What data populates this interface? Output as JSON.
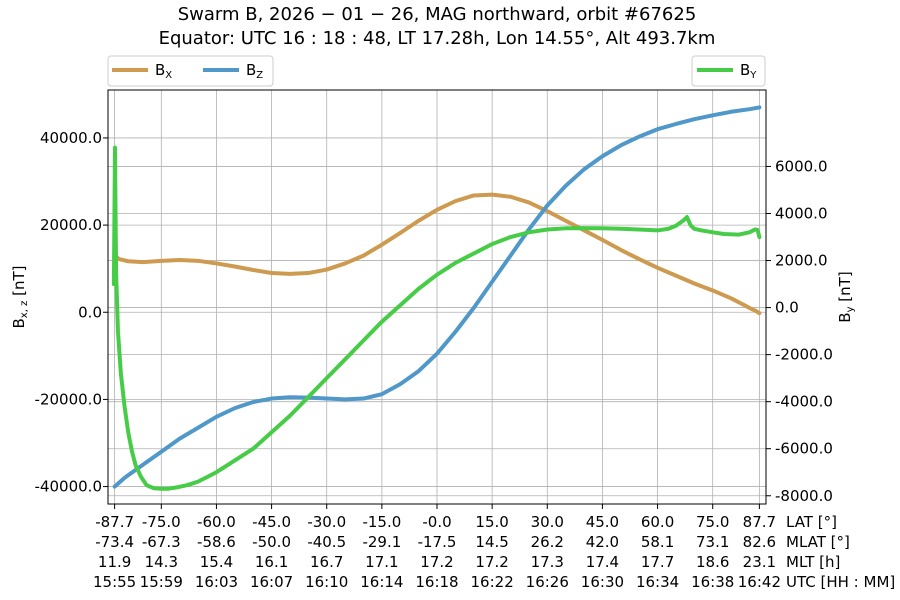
{
  "chart_data": {
    "type": "line",
    "title_line1": "Swarm B,  2026 − 01 − 26,  MAG northward,  orbit #67625",
    "title_line2": "Equator:  UTC 16 : 18 : 48,  LT 17.28h,  Lon 14.55°,  Alt 493.7km",
    "ylabel_left_main": "B",
    "ylabel_left_sub": "x, z",
    "ylabel_left_unit": " [nT]",
    "ylabel_right_main": "B",
    "ylabel_right_sub": "y",
    "ylabel_right_unit": " [nT]",
    "legend_left": [
      {
        "main": "B",
        "sub": "X",
        "color": "#cd9a4f"
      },
      {
        "main": "B",
        "sub": "Z",
        "color": "#4f98c9"
      }
    ],
    "legend_right": [
      {
        "main": "B",
        "sub": "Y",
        "color": "#47cc47"
      }
    ],
    "grid": true,
    "x_ticks_lat": [
      "-87.7",
      "-75.0",
      "-60.0",
      "-45.0",
      "-30.0",
      "-15.0",
      "-0.0",
      "15.0",
      "30.0",
      "45.0",
      "60.0",
      "75.0",
      "87.7"
    ],
    "x_ticks_mlat": [
      "-73.4",
      "-67.3",
      "-58.6",
      "-50.0",
      "-40.5",
      "-29.1",
      "-17.5",
      "14.5",
      "26.2",
      "42.0",
      "58.1",
      "73.1",
      "82.6"
    ],
    "x_ticks_mlt": [
      "11.9",
      "14.3",
      "15.4",
      "16.1",
      "16.7",
      "17.1",
      "17.2",
      "17.2",
      "17.3",
      "17.4",
      "17.7",
      "18.6",
      "23.1"
    ],
    "x_ticks_utc": [
      "15:55",
      "15:59",
      "16:03",
      "16:07",
      "16:10",
      "16:14",
      "16:18",
      "16:22",
      "16:26",
      "16:30",
      "16:34",
      "16:38",
      "16:42"
    ],
    "row_labels": [
      "LAT [°]",
      "MLAT [°]",
      "MLT [h]",
      "UTC [HH : MM]"
    ],
    "x_tick_positions_deg": [
      -87.7,
      -75,
      -60,
      -45,
      -30,
      -15,
      0,
      15,
      30,
      45,
      60,
      75,
      87.7
    ],
    "xlim": [
      -89.5,
      89.5
    ],
    "ylim_left": [
      -44000,
      51000
    ],
    "ylim_right": [
      -8350,
      9250
    ],
    "yticks_left": [
      "40000.0",
      "20000.0",
      "0.0",
      "-20000.0",
      "-40000.0"
    ],
    "yticks_left_values": [
      40000,
      20000,
      0,
      -20000,
      -40000
    ],
    "yticks_right": [
      "6000.0",
      "4000.0",
      "2000.0",
      "0.0",
      "-2000.0",
      "-4000.0",
      "-6000.0",
      "-8000.0"
    ],
    "yticks_right_values": [
      6000,
      4000,
      2000,
      0,
      -2000,
      -4000,
      -6000,
      -8000
    ],
    "series": [
      {
        "name": "BX",
        "axis": "left",
        "color": "#cd9a4f",
        "x": [
          -87.7,
          -87.3,
          -86.5,
          -84,
          -80,
          -75,
          -70,
          -65,
          -60,
          -55,
          -50,
          -45,
          -40,
          -35,
          -30,
          -25,
          -20,
          -15,
          -10,
          -5,
          0,
          5,
          10,
          15,
          20,
          25,
          30,
          35,
          40,
          45,
          50,
          55,
          60,
          65,
          70,
          75,
          80,
          83,
          85,
          86.5,
          87.7
        ],
        "y": [
          11000,
          12800,
          12200,
          11700,
          11500,
          11800,
          12000,
          11800,
          11200,
          10500,
          9700,
          9000,
          8800,
          9000,
          9800,
          11200,
          13000,
          15500,
          18200,
          21000,
          23500,
          25500,
          26800,
          27000,
          26500,
          25200,
          23200,
          21000,
          18800,
          16600,
          14300,
          12200,
          10200,
          8400,
          6600,
          5000,
          3200,
          1900,
          1000,
          400,
          -200
        ]
      },
      {
        "name": "BZ",
        "axis": "left",
        "color": "#4f98c9",
        "x": [
          -87.7,
          -85,
          -80,
          -75,
          -70,
          -65,
          -60,
          -55,
          -50,
          -45,
          -40,
          -35,
          -30,
          -25,
          -20,
          -15,
          -10,
          -5,
          0,
          5,
          10,
          15,
          20,
          25,
          30,
          35,
          40,
          45,
          50,
          55,
          60,
          65,
          70,
          75,
          80,
          85,
          87.7
        ],
        "y": [
          -40000,
          -38000,
          -35000,
          -32000,
          -29000,
          -26500,
          -24000,
          -22000,
          -20600,
          -19800,
          -19500,
          -19600,
          -19800,
          -20000,
          -19800,
          -18800,
          -16500,
          -13500,
          -9500,
          -4500,
          1000,
          7000,
          13000,
          19000,
          24500,
          29000,
          32800,
          35800,
          38300,
          40300,
          42000,
          43200,
          44300,
          45200,
          46000,
          46600,
          47000
        ]
      },
      {
        "name": "BY",
        "axis": "right",
        "color": "#47cc47",
        "x": [
          -87.9,
          -87.6,
          -87.3,
          -86.8,
          -86,
          -85,
          -84,
          -83,
          -82,
          -80.5,
          -79,
          -77,
          -75,
          -73,
          -71,
          -68,
          -65,
          -60,
          -55,
          -50,
          -45,
          -40,
          -35,
          -30,
          -25,
          -20,
          -15,
          -10,
          -5,
          0,
          5,
          10,
          15,
          20,
          25,
          30,
          35,
          40,
          45,
          50,
          55,
          60,
          63,
          65,
          67,
          68,
          69,
          70,
          72,
          75,
          78,
          82,
          85,
          86.5,
          87.2,
          87.7
        ],
        "y": [
          1000,
          6800,
          1500,
          -1000,
          -2800,
          -4200,
          -5300,
          -6100,
          -6700,
          -7200,
          -7550,
          -7680,
          -7700,
          -7700,
          -7650,
          -7550,
          -7400,
          -7000,
          -6500,
          -6000,
          -5300,
          -4600,
          -3800,
          -3000,
          -2200,
          -1400,
          -600,
          100,
          800,
          1400,
          1900,
          2300,
          2700,
          3000,
          3200,
          3320,
          3370,
          3380,
          3370,
          3350,
          3320,
          3280,
          3350,
          3480,
          3700,
          3850,
          3500,
          3350,
          3280,
          3200,
          3130,
          3100,
          3200,
          3320,
          3300,
          3000
        ]
      }
    ]
  }
}
